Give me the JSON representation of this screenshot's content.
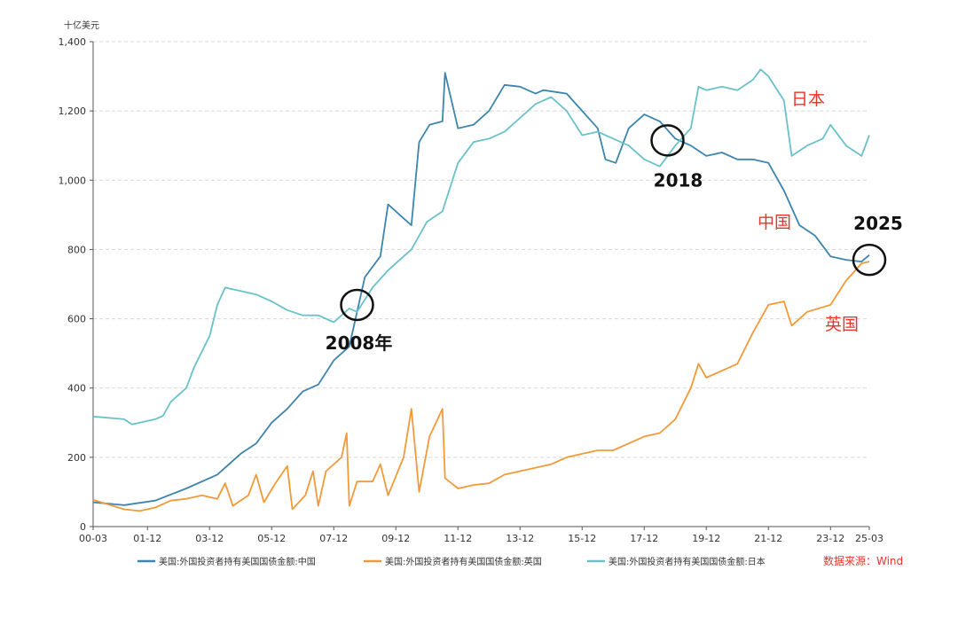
{
  "chart_data": {
    "type": "line",
    "y_unit": "十亿美元",
    "ylim": [
      0,
      1400
    ],
    "y_ticks": [
      0,
      200,
      400,
      600,
      800,
      1000,
      1200,
      1400
    ],
    "y_tick_labels": [
      "0",
      "200",
      "400",
      "600",
      "800",
      "1,000",
      "1,200",
      "1,400"
    ],
    "x_range": [
      "2000-03",
      "2025-03"
    ],
    "x_ticks": [
      "00-03",
      "01-12",
      "03-12",
      "05-12",
      "07-12",
      "09-12",
      "11-12",
      "13-12",
      "15-12",
      "17-12",
      "19-12",
      "21-12",
      "23-12",
      "25-03"
    ],
    "grid": "horizontal dashed",
    "legend_position": "bottom",
    "series": [
      {
        "name": "美国:外国投资者持有美国国债金额:中国",
        "color": "#3d85ad",
        "points": [
          [
            "2000-03",
            70
          ],
          [
            "2001-03",
            62
          ],
          [
            "2002-03",
            75
          ],
          [
            "2003-03",
            110
          ],
          [
            "2004-03",
            150
          ],
          [
            "2004-12",
            210
          ],
          [
            "2005-06",
            240
          ],
          [
            "2005-12",
            300
          ],
          [
            "2006-06",
            340
          ],
          [
            "2006-12",
            390
          ],
          [
            "2007-06",
            410
          ],
          [
            "2007-12",
            480
          ],
          [
            "2008-06",
            520
          ],
          [
            "2008-12",
            720
          ],
          [
            "2009-06",
            780
          ],
          [
            "2009-09",
            930
          ],
          [
            "2010-03",
            890
          ],
          [
            "2010-06",
            870
          ],
          [
            "2010-09",
            1110
          ],
          [
            "2011-01",
            1160
          ],
          [
            "2011-06",
            1170
          ],
          [
            "2011-07",
            1310
          ],
          [
            "2011-12",
            1150
          ],
          [
            "2012-06",
            1160
          ],
          [
            "2012-12",
            1200
          ],
          [
            "2013-06",
            1275
          ],
          [
            "2013-12",
            1270
          ],
          [
            "2014-06",
            1250
          ],
          [
            "2014-09",
            1260
          ],
          [
            "2015-06",
            1250
          ],
          [
            "2015-12",
            1200
          ],
          [
            "2016-06",
            1150
          ],
          [
            "2016-09",
            1060
          ],
          [
            "2017-01",
            1050
          ],
          [
            "2017-06",
            1150
          ],
          [
            "2017-12",
            1190
          ],
          [
            "2018-06",
            1170
          ],
          [
            "2018-12",
            1120
          ],
          [
            "2019-06",
            1100
          ],
          [
            "2019-12",
            1070
          ],
          [
            "2020-06",
            1080
          ],
          [
            "2020-12",
            1060
          ],
          [
            "2021-06",
            1060
          ],
          [
            "2021-12",
            1050
          ],
          [
            "2022-06",
            970
          ],
          [
            "2022-12",
            870
          ],
          [
            "2023-06",
            840
          ],
          [
            "2023-12",
            780
          ],
          [
            "2024-06",
            770
          ],
          [
            "2024-12",
            765
          ],
          [
            "2025-03",
            784
          ]
        ]
      },
      {
        "name": "美国:外国投资者持有美国国债金额:英国",
        "color": "#f29a38",
        "points": [
          [
            "2000-03",
            77
          ],
          [
            "2001-03",
            50
          ],
          [
            "2001-09",
            45
          ],
          [
            "2002-03",
            55
          ],
          [
            "2002-09",
            75
          ],
          [
            "2003-03",
            80
          ],
          [
            "2003-09",
            90
          ],
          [
            "2004-03",
            80
          ],
          [
            "2004-06",
            125
          ],
          [
            "2004-09",
            60
          ],
          [
            "2005-03",
            90
          ],
          [
            "2005-06",
            150
          ],
          [
            "2005-09",
            70
          ],
          [
            "2006-01",
            120
          ],
          [
            "2006-06",
            175
          ],
          [
            "2006-08",
            50
          ],
          [
            "2007-01",
            90
          ],
          [
            "2007-04",
            160
          ],
          [
            "2007-06",
            60
          ],
          [
            "2007-09",
            160
          ],
          [
            "2008-03",
            200
          ],
          [
            "2008-05",
            270
          ],
          [
            "2008-06",
            60
          ],
          [
            "2008-09",
            130
          ],
          [
            "2009-03",
            130
          ],
          [
            "2009-06",
            180
          ],
          [
            "2009-09",
            90
          ],
          [
            "2010-03",
            200
          ],
          [
            "2010-06",
            340
          ],
          [
            "2010-09",
            100
          ],
          [
            "2011-01",
            260
          ],
          [
            "2011-06",
            340
          ],
          [
            "2011-07",
            140
          ],
          [
            "2011-12",
            110
          ],
          [
            "2012-06",
            120
          ],
          [
            "2012-12",
            125
          ],
          [
            "2013-06",
            150
          ],
          [
            "2013-12",
            160
          ],
          [
            "2014-06",
            170
          ],
          [
            "2014-12",
            180
          ],
          [
            "2015-06",
            200
          ],
          [
            "2015-12",
            210
          ],
          [
            "2016-06",
            220
          ],
          [
            "2016-12",
            220
          ],
          [
            "2017-06",
            240
          ],
          [
            "2017-12",
            260
          ],
          [
            "2018-06",
            270
          ],
          [
            "2018-12",
            310
          ],
          [
            "2019-06",
            400
          ],
          [
            "2019-09",
            470
          ],
          [
            "2019-12",
            430
          ],
          [
            "2020-06",
            450
          ],
          [
            "2020-12",
            470
          ],
          [
            "2021-06",
            560
          ],
          [
            "2021-12",
            640
          ],
          [
            "2022-06",
            650
          ],
          [
            "2022-09",
            580
          ],
          [
            "2023-03",
            620
          ],
          [
            "2023-12",
            640
          ],
          [
            "2024-06",
            710
          ],
          [
            "2024-12",
            760
          ],
          [
            "2025-03",
            765
          ]
        ]
      },
      {
        "name": "美国:外国投资者持有美国国债金额:日本",
        "color": "#6ac1c9",
        "points": [
          [
            "2000-03",
            318
          ],
          [
            "2001-03",
            310
          ],
          [
            "2001-06",
            295
          ],
          [
            "2002-03",
            310
          ],
          [
            "2002-06",
            320
          ],
          [
            "2002-09",
            360
          ],
          [
            "2003-03",
            400
          ],
          [
            "2003-06",
            460
          ],
          [
            "2003-12",
            550
          ],
          [
            "2004-03",
            640
          ],
          [
            "2004-06",
            690
          ],
          [
            "2004-12",
            680
          ],
          [
            "2005-06",
            670
          ],
          [
            "2005-12",
            650
          ],
          [
            "2006-06",
            625
          ],
          [
            "2006-12",
            610
          ],
          [
            "2007-06",
            610
          ],
          [
            "2007-12",
            590
          ],
          [
            "2008-06",
            630
          ],
          [
            "2008-09",
            620
          ],
          [
            "2009-03",
            690
          ],
          [
            "2009-09",
            740
          ],
          [
            "2010-03",
            780
          ],
          [
            "2010-06",
            800
          ],
          [
            "2010-12",
            880
          ],
          [
            "2011-06",
            910
          ],
          [
            "2011-12",
            1050
          ],
          [
            "2012-06",
            1110
          ],
          [
            "2012-12",
            1120
          ],
          [
            "2013-06",
            1140
          ],
          [
            "2013-12",
            1180
          ],
          [
            "2014-06",
            1220
          ],
          [
            "2014-12",
            1240
          ],
          [
            "2015-06",
            1200
          ],
          [
            "2015-12",
            1130
          ],
          [
            "2016-06",
            1140
          ],
          [
            "2016-12",
            1120
          ],
          [
            "2017-06",
            1100
          ],
          [
            "2017-12",
            1060
          ],
          [
            "2018-06",
            1040
          ],
          [
            "2018-12",
            1100
          ],
          [
            "2019-06",
            1150
          ],
          [
            "2019-09",
            1270
          ],
          [
            "2019-12",
            1260
          ],
          [
            "2020-06",
            1270
          ],
          [
            "2020-12",
            1260
          ],
          [
            "2021-06",
            1290
          ],
          [
            "2021-09",
            1320
          ],
          [
            "2021-12",
            1300
          ],
          [
            "2022-06",
            1230
          ],
          [
            "2022-09",
            1070
          ],
          [
            "2023-03",
            1100
          ],
          [
            "2023-09",
            1120
          ],
          [
            "2023-12",
            1160
          ],
          [
            "2024-06",
            1100
          ],
          [
            "2024-12",
            1070
          ],
          [
            "2025-03",
            1130
          ]
        ]
      }
    ],
    "series_labels": [
      {
        "text": "日本",
        "series": 2
      },
      {
        "text": "中国",
        "series": 0
      },
      {
        "text": "英国",
        "series": 1
      }
    ],
    "annotations": [
      {
        "text": "2008年",
        "x": "2008-09",
        "y": 640
      },
      {
        "text": "2018",
        "x": "2018-09",
        "y": 1115
      },
      {
        "text": "2025",
        "x": "2025-03",
        "y": 770
      }
    ]
  },
  "source_note": "数据来源：Wind"
}
